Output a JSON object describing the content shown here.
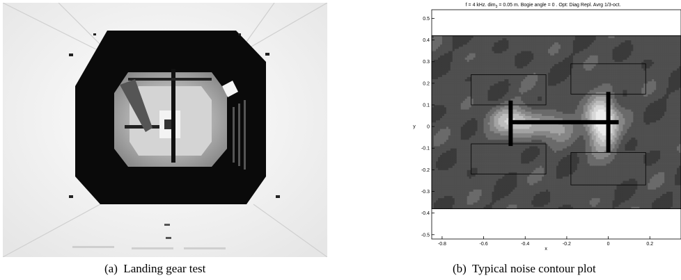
{
  "captions": {
    "a": {
      "letter": "(a)",
      "text": "Landing gear test"
    },
    "b": {
      "letter": "(b)",
      "text": "Typical noise contour plot"
    }
  },
  "photo": {
    "description_icon": "wind-tunnel-photo",
    "colors": {
      "wall": "#f4f4f4",
      "frame": "#0a0a0a",
      "inner": "#bdbdbd"
    }
  },
  "chart_data": {
    "type": "heatmap",
    "title_parts": {
      "pre": "f = 4 kHz. dim",
      "sub": "3",
      "post": " = 0.05 m. Bogie angle = 0 . Opt: Diag Repl. Avrg 1/3-oct."
    },
    "xlabel": "x",
    "ylabel": "y",
    "xlim": [
      -0.85,
      0.35
    ],
    "ylim": [
      -0.52,
      0.54
    ],
    "xticks": [
      {
        "v": -0.8,
        "label": "-0.8"
      },
      {
        "v": -0.6,
        "label": "-0.6"
      },
      {
        "v": -0.4,
        "label": "-0.4"
      },
      {
        "v": -0.2,
        "label": "-0.2"
      },
      {
        "v": 0,
        "label": "0"
      },
      {
        "v": 0.2,
        "label": "0.2"
      }
    ],
    "yticks": [
      {
        "v": 0.5,
        "label": "0.5"
      },
      {
        "v": 0.4,
        "label": "0.4"
      },
      {
        "v": 0.3,
        "label": "0.3"
      },
      {
        "v": 0.2,
        "label": "0.2"
      },
      {
        "v": 0.1,
        "label": "0.1"
      },
      {
        "v": 0,
        "label": "0"
      },
      {
        "v": -0.1,
        "label": "-0.1"
      },
      {
        "v": -0.2,
        "label": "-0.2"
      },
      {
        "v": -0.3,
        "label": "-0.3"
      },
      {
        "v": -0.4,
        "label": "-0.4"
      },
      {
        "v": -0.5,
        "label": "-0.5"
      }
    ],
    "field_extent": {
      "x": [
        -0.85,
        0.35
      ],
      "y": [
        -0.38,
        0.42
      ]
    },
    "hot_spots": [
      {
        "x": -0.03,
        "y": 0.02,
        "sx": 0.07,
        "sy": 0.12,
        "amp": 1.0
      },
      {
        "x": -0.45,
        "y": 0.02,
        "sx": 0.12,
        "sy": 0.07,
        "amp": 0.62
      },
      {
        "x": -0.25,
        "y": 0.0,
        "sx": 0.09,
        "sy": 0.06,
        "amp": 0.4
      }
    ],
    "gear_outline": {
      "boxes": [
        {
          "x1": -0.66,
          "x2": -0.3,
          "y1": 0.1,
          "y2": 0.24
        },
        {
          "x1": -0.66,
          "x2": -0.3,
          "y1": -0.22,
          "y2": -0.08
        },
        {
          "x1": -0.18,
          "x2": 0.18,
          "y1": 0.15,
          "y2": 0.29
        },
        {
          "x1": -0.18,
          "x2": 0.18,
          "y1": -0.27,
          "y2": -0.12
        }
      ],
      "axle_bars": [
        {
          "x1": -0.47,
          "x2": -0.47,
          "y1": -0.09,
          "y2": 0.12
        },
        {
          "x1": 0.0,
          "x2": 0.0,
          "y1": -0.12,
          "y2": 0.16
        }
      ],
      "beam": {
        "x1": -0.48,
        "x2": 0.05,
        "y": 0.02
      }
    }
  }
}
